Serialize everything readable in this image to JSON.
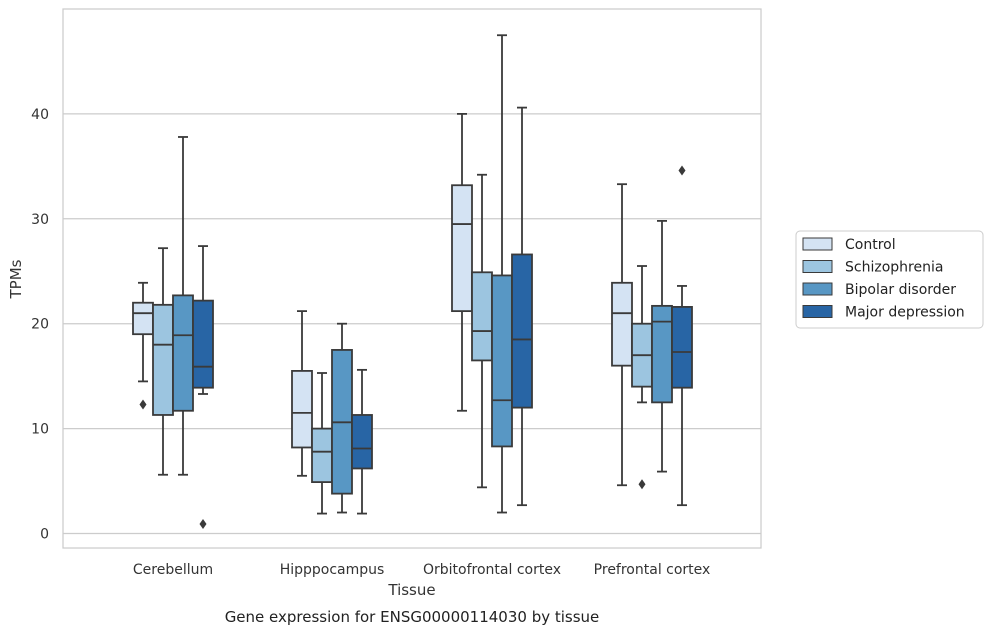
{
  "chart_data": {
    "type": "box",
    "xlabel": "Tissue",
    "ylabel": "TPMs",
    "caption": "Gene expression for ENSG00000114030 by tissue",
    "ylim": [
      -1.5,
      50
    ],
    "yticks": [
      0,
      10,
      20,
      30,
      40
    ],
    "grid": "horizontal",
    "legend_position": "right",
    "categories": [
      "Cerebellum",
      "Hipppocampus",
      "Orbitofrontal cortex",
      "Prefrontal cortex"
    ],
    "series": [
      {
        "name": "Control",
        "color": "#d4e3f3",
        "boxes": [
          {
            "whisker_low": 14.5,
            "q1": 19.0,
            "median": 21.0,
            "q3": 22.0,
            "whisker_high": 23.9,
            "outliers": [
              12.3
            ]
          },
          {
            "whisker_low": 5.5,
            "q1": 8.2,
            "median": 11.5,
            "q3": 15.5,
            "whisker_high": 21.2,
            "outliers": []
          },
          {
            "whisker_low": 11.7,
            "q1": 21.2,
            "median": 29.5,
            "q3": 33.2,
            "whisker_high": 40.0,
            "outliers": []
          },
          {
            "whisker_low": 4.6,
            "q1": 16.0,
            "median": 21.0,
            "q3": 23.9,
            "whisker_high": 33.3,
            "outliers": []
          }
        ]
      },
      {
        "name": "Schizophrenia",
        "color": "#9cc5e0",
        "boxes": [
          {
            "whisker_low": 5.6,
            "q1": 11.3,
            "median": 18.0,
            "q3": 21.8,
            "whisker_high": 27.2,
            "outliers": []
          },
          {
            "whisker_low": 1.9,
            "q1": 4.9,
            "median": 7.8,
            "q3": 10.0,
            "whisker_high": 15.3,
            "outliers": []
          },
          {
            "whisker_low": 4.4,
            "q1": 16.5,
            "median": 19.3,
            "q3": 24.9,
            "whisker_high": 34.2,
            "outliers": []
          },
          {
            "whisker_low": 12.5,
            "q1": 14.0,
            "median": 17.0,
            "q3": 20.0,
            "whisker_high": 25.5,
            "outliers": [
              4.7
            ]
          }
        ]
      },
      {
        "name": "Bipolar disorder",
        "color": "#5897c4",
        "boxes": [
          {
            "whisker_low": 5.6,
            "q1": 11.7,
            "median": 18.9,
            "q3": 22.7,
            "whisker_high": 37.8,
            "outliers": []
          },
          {
            "whisker_low": 2.0,
            "q1": 3.8,
            "median": 10.6,
            "q3": 17.5,
            "whisker_high": 20.0,
            "outliers": []
          },
          {
            "whisker_low": 2.0,
            "q1": 8.3,
            "median": 12.7,
            "q3": 24.6,
            "whisker_high": 47.5,
            "outliers": []
          },
          {
            "whisker_low": 5.9,
            "q1": 12.5,
            "median": 20.2,
            "q3": 21.7,
            "whisker_high": 29.8,
            "outliers": []
          }
        ]
      },
      {
        "name": "Major depression",
        "color": "#2865a5",
        "boxes": [
          {
            "whisker_low": 13.3,
            "q1": 13.9,
            "median": 15.9,
            "q3": 22.2,
            "whisker_high": 27.4,
            "outliers": [
              0.9
            ]
          },
          {
            "whisker_low": 1.9,
            "q1": 6.2,
            "median": 8.1,
            "q3": 11.3,
            "whisker_high": 15.6,
            "outliers": []
          },
          {
            "whisker_low": 2.7,
            "q1": 12.0,
            "median": 18.5,
            "q3": 26.6,
            "whisker_high": 40.6,
            "outliers": []
          },
          {
            "whisker_low": 2.7,
            "q1": 13.9,
            "median": 17.3,
            "q3": 21.6,
            "whisker_high": 23.6,
            "outliers": [
              34.6
            ]
          }
        ]
      }
    ]
  }
}
